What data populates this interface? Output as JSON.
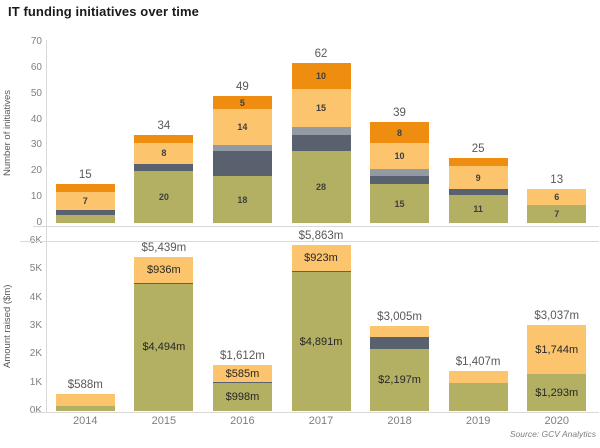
{
  "title": "IT funding initiatives over time",
  "source": "Source: GCV Analytics",
  "colors": {
    "green": "#b3b063",
    "dark_gray": "#59616f",
    "light_gray": "#939aa4",
    "light_orange": "#fbc46d",
    "dark_orange": "#ee8d10",
    "axis_line": "#d9d9d9",
    "tick_label": "#7f7f7f",
    "total_label": "#595959"
  },
  "chart_data": [
    {
      "type": "bar",
      "stacked": true,
      "ylabel": "Number of initiatives",
      "categories": [
        "2014",
        "2015",
        "2016",
        "2017",
        "2018",
        "2019",
        "2020"
      ],
      "ylim": [
        0,
        70
      ],
      "yticks": [
        "0",
        "10",
        "20",
        "30",
        "40",
        "50",
        "60",
        "70"
      ],
      "grid": "none",
      "legend_position": "none",
      "totals": [
        "15",
        "34",
        "49",
        "62",
        "39",
        "25",
        "13"
      ],
      "series": [
        {
          "name": "green",
          "color": "green",
          "values": [
            3,
            20,
            18,
            28,
            15,
            11,
            7
          ],
          "labels": [
            "",
            "20",
            "18",
            "28",
            "15",
            "11",
            "7"
          ]
        },
        {
          "name": "dark-gray",
          "color": "dark_gray",
          "values": [
            2,
            3,
            10,
            6,
            3,
            2,
            0
          ],
          "labels": [
            "",
            "",
            "",
            "",
            "",
            "",
            ""
          ]
        },
        {
          "name": "light-gray",
          "color": "light_gray",
          "values": [
            0,
            0,
            2,
            3,
            3,
            0,
            0
          ],
          "labels": [
            "",
            "",
            "",
            "",
            "",
            "",
            ""
          ]
        },
        {
          "name": "light-orange",
          "color": "light_orange",
          "values": [
            7,
            8,
            14,
            15,
            10,
            9,
            6
          ],
          "labels": [
            "7",
            "8",
            "14",
            "15",
            "10",
            "9",
            "6"
          ]
        },
        {
          "name": "dark-orange",
          "color": "dark_orange",
          "values": [
            3,
            3,
            5,
            10,
            8,
            3,
            0
          ],
          "labels": [
            "",
            "",
            "5",
            "10",
            "8",
            "",
            ""
          ]
        }
      ]
    },
    {
      "type": "bar",
      "stacked": true,
      "ylabel": "Amount raised ($m)",
      "categories": [
        "2014",
        "2015",
        "2016",
        "2017",
        "2018",
        "2019",
        "2020"
      ],
      "ylim": [
        0,
        6000
      ],
      "yticks": [
        "0K",
        "1K",
        "2K",
        "3K",
        "4K",
        "5K",
        "6K"
      ],
      "grid": "top-line",
      "legend_position": "none",
      "totals": [
        "$588m",
        "$5,439m",
        "$1,612m",
        "$5,863m",
        "$3,005m",
        "$1,407m",
        "$3,037m"
      ],
      "series": [
        {
          "name": "green",
          "color": "green",
          "values": [
            170,
            4494,
            998,
            4891,
            2197,
            980,
            1293
          ],
          "labels": [
            "",
            "$4,494m",
            "$998m",
            "$4,891m",
            "$2,197m",
            "",
            "$1,293m"
          ]
        },
        {
          "name": "dark-gray",
          "color": "dark_gray",
          "values": [
            0,
            9,
            29,
            49,
            410,
            0,
            0
          ],
          "labels": [
            "",
            "",
            "",
            "",
            "",
            "",
            ""
          ]
        },
        {
          "name": "light-orange",
          "color": "light_orange",
          "values": [
            418,
            936,
            585,
            923,
            398,
            427,
            1744
          ],
          "labels": [
            "",
            "$936m",
            "$585m",
            "$923m",
            "",
            "",
            "$1,744m"
          ]
        }
      ]
    }
  ]
}
